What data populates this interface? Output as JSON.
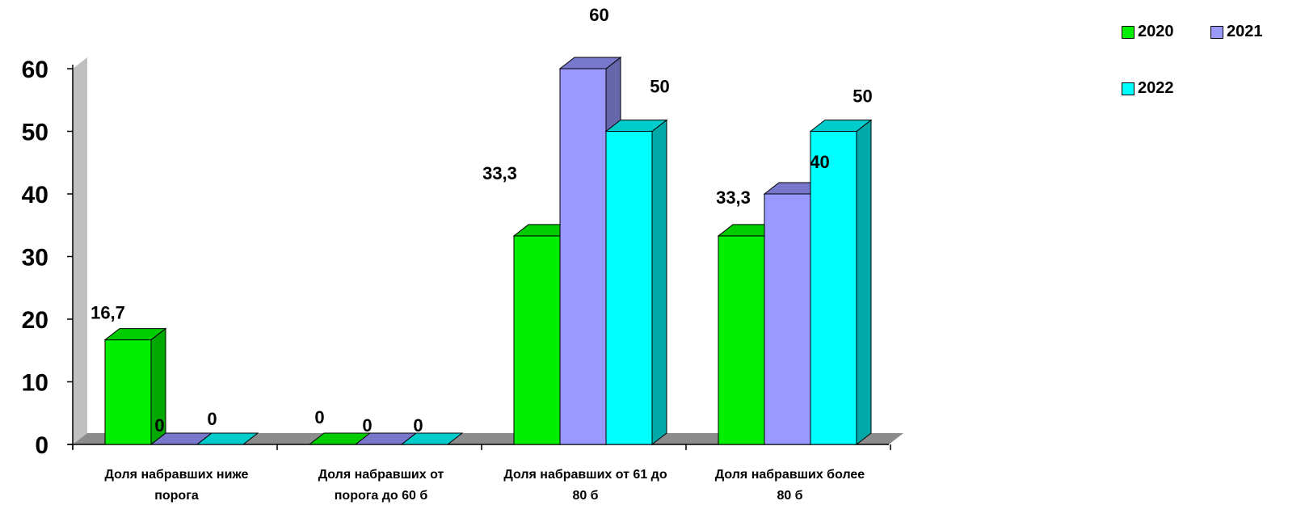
{
  "chart_data": {
    "type": "bar",
    "categories": [
      [
        "Доля набравших ниже",
        "порога"
      ],
      [
        "Доля набравших от",
        "порога до 60 б"
      ],
      [
        "Доля набравших от 61 до",
        "80 б"
      ],
      [
        "Доля набравших более",
        "80 б"
      ]
    ],
    "series": [
      {
        "name": "2020",
        "values": [
          16.7,
          0,
          33.3,
          33.3
        ],
        "labels": [
          "16,7",
          "0",
          "33,3",
          "33,3"
        ],
        "color": "#00ee00",
        "side": "#00a800",
        "top": "#00cc00"
      },
      {
        "name": "2021",
        "values": [
          0,
          0,
          60,
          40
        ],
        "labels": [
          "0",
          "0",
          "60",
          "40"
        ],
        "color": "#9999ff",
        "side": "#6666aa",
        "top": "#7777cc"
      },
      {
        "name": "2022",
        "values": [
          0,
          0,
          50,
          50
        ],
        "labels": [
          "0",
          "0",
          "50",
          "50"
        ],
        "color": "#00ffff",
        "side": "#00a8a8",
        "top": "#00cccc"
      }
    ],
    "ylim": [
      0,
      60
    ],
    "yticks": [
      "0",
      "10",
      "20",
      "30",
      "40",
      "50",
      "60"
    ],
    "legend_position": "top-right",
    "grid": false,
    "xlabel": "",
    "ylabel": ""
  }
}
